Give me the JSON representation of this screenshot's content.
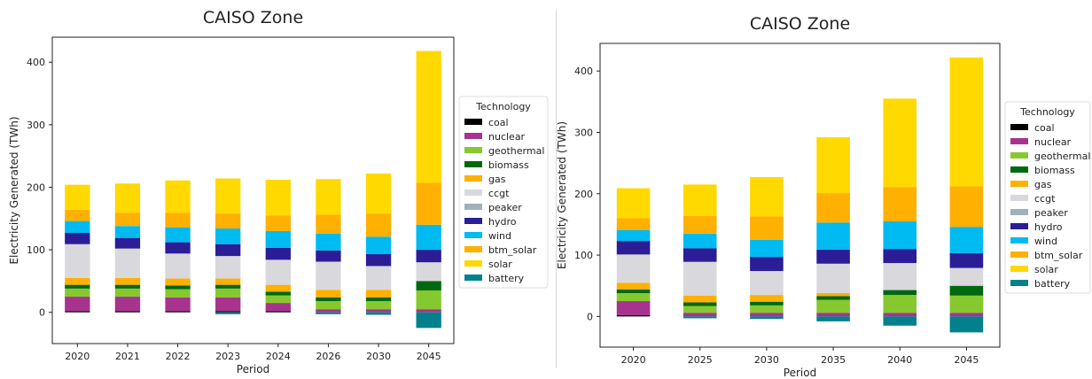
{
  "colors": {
    "coal": "#000000",
    "nuclear": "#a7338f",
    "geothermal": "#85c92f",
    "biomass": "#00680f",
    "gas": "#ffb000",
    "ccgt": "#d9d8dd",
    "peaker": "#9fb1bb",
    "hydro": "#2a1d96",
    "wind": "#00baf2",
    "btm_solar": "#ffb000",
    "solar": "#ffd900",
    "battery": "#00818c"
  },
  "chart_data": [
    {
      "type": "bar",
      "stacked": true,
      "title": "CAISO Zone",
      "xlabel": "Period",
      "ylabel": "Electricity Generated (TWh)",
      "ylim": [
        -50,
        440
      ],
      "yticks": [
        0,
        100,
        200,
        300,
        400
      ],
      "categories": [
        "2020",
        "2021",
        "2022",
        "2023",
        "2024",
        "2026",
        "2030",
        "2045"
      ],
      "legend": {
        "title": "Technology",
        "placement": "outside-right"
      },
      "series": [
        {
          "name": "coal",
          "values": [
            2,
            2,
            2,
            2,
            2,
            0,
            0,
            0
          ]
        },
        {
          "name": "nuclear",
          "values": [
            23,
            23,
            22,
            22,
            13,
            5,
            5,
            5
          ]
        },
        {
          "name": "geothermal",
          "values": [
            13,
            13,
            13,
            14,
            12,
            13,
            13,
            30
          ]
        },
        {
          "name": "biomass",
          "values": [
            6,
            6,
            6,
            6,
            6,
            6,
            6,
            15
          ]
        },
        {
          "name": "gas",
          "values": [
            11,
            11,
            11,
            10,
            11,
            12,
            12,
            0
          ]
        },
        {
          "name": "ccgt",
          "values": [
            54,
            47,
            40,
            36,
            40,
            45,
            38,
            30
          ]
        },
        {
          "name": "peaker",
          "values": [
            0,
            0,
            0,
            0,
            0,
            0,
            0,
            0
          ]
        },
        {
          "name": "hydro",
          "values": [
            18,
            17,
            18,
            19,
            19,
            18,
            19,
            20
          ]
        },
        {
          "name": "wind",
          "values": [
            19,
            19,
            24,
            25,
            27,
            27,
            28,
            40
          ]
        },
        {
          "name": "btm_solar",
          "values": [
            18,
            21,
            23,
            24,
            25,
            30,
            37,
            67
          ]
        },
        {
          "name": "solar",
          "values": [
            40,
            47,
            52,
            56,
            57,
            57,
            64,
            211
          ]
        },
        {
          "name": "battery",
          "values": [
            0,
            0,
            0,
            -3,
            0,
            -3,
            -4,
            -25
          ]
        }
      ]
    },
    {
      "type": "bar",
      "stacked": true,
      "title": "CAISO Zone",
      "xlabel": "Period",
      "ylabel": "Electricity Generated (TWh)",
      "ylim": [
        -50,
        445
      ],
      "yticks": [
        0,
        100,
        200,
        300,
        400
      ],
      "categories": [
        "2020",
        "2025",
        "2030",
        "2035",
        "2040",
        "2045"
      ],
      "legend": {
        "title": "Technology",
        "placement": "outside-right"
      },
      "series": [
        {
          "name": "coal",
          "values": [
            2,
            0,
            0,
            0,
            0,
            0
          ]
        },
        {
          "name": "nuclear",
          "values": [
            23,
            6,
            6,
            6,
            6,
            6
          ]
        },
        {
          "name": "geothermal",
          "values": [
            13,
            11,
            12,
            21,
            29,
            28
          ]
        },
        {
          "name": "biomass",
          "values": [
            6,
            6,
            6,
            6,
            8,
            16
          ]
        },
        {
          "name": "gas",
          "values": [
            11,
            11,
            11,
            5,
            0,
            0
          ]
        },
        {
          "name": "ccgt",
          "values": [
            46,
            55,
            39,
            48,
            44,
            29
          ]
        },
        {
          "name": "peaker",
          "values": [
            0,
            0,
            0,
            0,
            0,
            0
          ]
        },
        {
          "name": "hydro",
          "values": [
            22,
            22,
            23,
            23,
            23,
            24
          ]
        },
        {
          "name": "wind",
          "values": [
            18,
            24,
            28,
            44,
            45,
            43
          ]
        },
        {
          "name": "btm_solar",
          "values": [
            19,
            29,
            38,
            48,
            56,
            66
          ]
        },
        {
          "name": "solar",
          "values": [
            49,
            51,
            64,
            91,
            144,
            210
          ]
        },
        {
          "name": "battery",
          "values": [
            0,
            -3,
            -4,
            -8,
            -15,
            -26
          ]
        }
      ]
    }
  ]
}
